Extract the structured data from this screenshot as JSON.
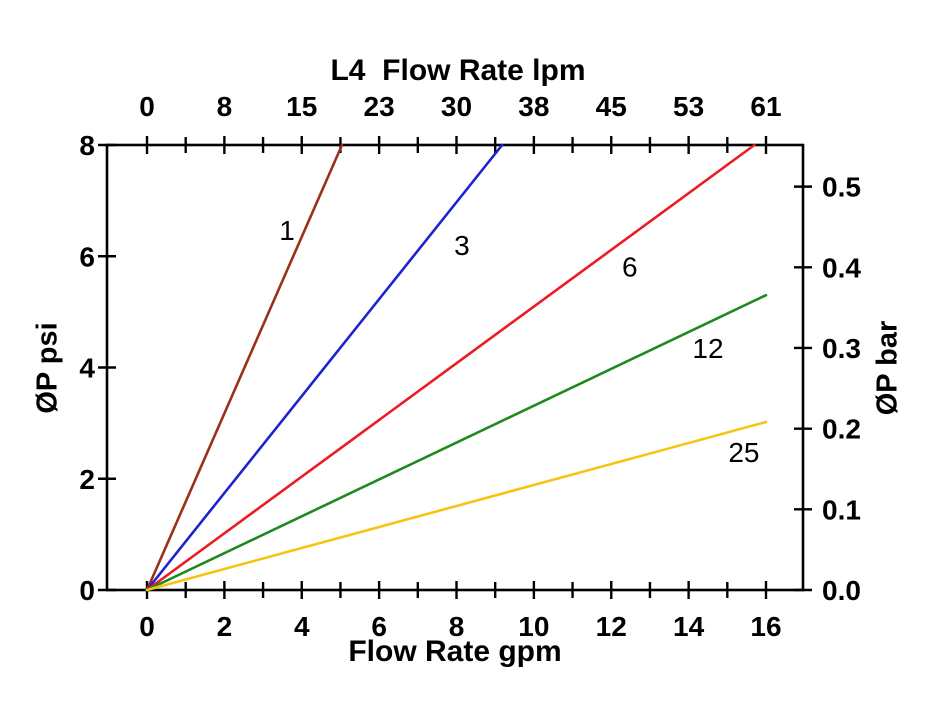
{
  "chart_data": {
    "type": "line",
    "title": "L4  Flow Rate lpm",
    "grid": false,
    "legend": "none (labels on curves)",
    "top_axis": {
      "label": "L4  Flow Rate lpm",
      "unit": "lpm",
      "tick_labels": [
        "0",
        "8",
        "15",
        "23",
        "30",
        "38",
        "45",
        "53",
        "61"
      ],
      "tick_positions_gpm": [
        0,
        2,
        4,
        6,
        8,
        10,
        12,
        14,
        16
      ]
    },
    "bottom_axis": {
      "label": "Flow Rate gpm",
      "unit": "gpm",
      "ticks": [
        0,
        2,
        4,
        6,
        8,
        10,
        12,
        14,
        16
      ],
      "minor_ticks": [
        1,
        3,
        5,
        7,
        9,
        11,
        13,
        15
      ],
      "range": [
        -1.03,
        16.95
      ]
    },
    "left_axis": {
      "label": "ØP psi",
      "unit": "psi",
      "ticks": [
        0,
        2,
        4,
        6,
        8
      ],
      "range": [
        0,
        8
      ]
    },
    "right_axis": {
      "label": "ØP bar",
      "unit": "bar",
      "tick_labels": [
        "0.0",
        "0.1",
        "0.2",
        "0.3",
        "0.4",
        "0.5"
      ],
      "tick_values": [
        0.0,
        0.1,
        0.2,
        0.3,
        0.4,
        0.5
      ],
      "psi_per_bar": 14.5038
    },
    "axis_color": "#000000",
    "series": [
      {
        "name": "1",
        "color": "#993018",
        "points_gpm_psi": [
          [
            0,
            0
          ],
          [
            5.04,
            8.0
          ]
        ],
        "label": {
          "text": "1",
          "x_gpm": 3.62,
          "y_psi": 6.47
        }
      },
      {
        "name": "3",
        "color": "#1E22D2",
        "points_gpm_psi": [
          [
            0,
            0
          ],
          [
            9.18,
            8.0
          ]
        ],
        "label": {
          "text": "3",
          "x_gpm": 8.14,
          "y_psi": 6.2
        }
      },
      {
        "name": "6",
        "color": "#EC1C24",
        "points_gpm_psi": [
          [
            0,
            0
          ],
          [
            15.7,
            8.0
          ]
        ],
        "label": {
          "text": "6",
          "x_gpm": 12.48,
          "y_psi": 5.82
        }
      },
      {
        "name": "12",
        "color": "#1E8A1E",
        "points_gpm_psi": [
          [
            0,
            0
          ],
          [
            16.0,
            5.3
          ]
        ],
        "label": {
          "text": "12",
          "x_gpm": 14.5,
          "y_psi": 4.35
        }
      },
      {
        "name": "25",
        "color": "#F5C511",
        "points_gpm_psi": [
          [
            0,
            0
          ],
          [
            16.0,
            3.02
          ]
        ],
        "label": {
          "text": "25",
          "x_gpm": 15.43,
          "y_psi": 2.48
        }
      }
    ]
  }
}
